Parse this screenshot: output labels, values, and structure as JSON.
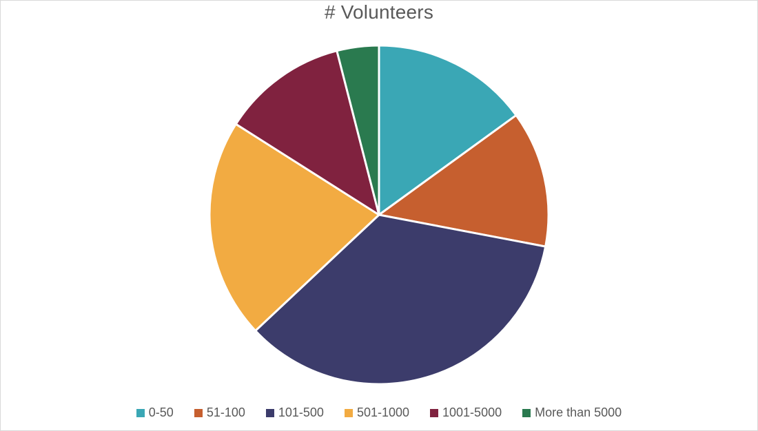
{
  "chart_data": {
    "type": "pie",
    "title": "# Volunteers",
    "categories": [
      "0-50",
      "51-100",
      "101-500",
      "501-1000",
      "1001-5000",
      "More than 5000"
    ],
    "values": [
      15,
      13,
      35,
      21,
      12,
      4
    ],
    "unit": "%",
    "colors": [
      "#3aa7b5",
      "#c65f2f",
      "#3c3c6b",
      "#f2ab42",
      "#80223f",
      "#2a7a4f"
    ],
    "legend_position": "bottom",
    "start_angle_deg": 0,
    "direction": "clockwise"
  }
}
